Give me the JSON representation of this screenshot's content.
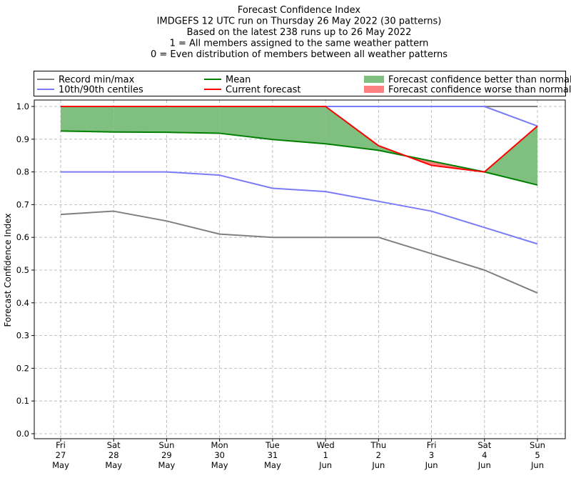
{
  "chart_data": {
    "type": "line",
    "title_lines": [
      "Forecast Confidence Index",
      "IMDGEFS 12 UTC run on Thursday 26 May 2022 (30 patterns)",
      "Based on the latest 238 runs up to 26 May 2022",
      "1 = All members assigned to the same weather pattern",
      "0 = Even distribution of members between all weather patterns"
    ],
    "ylabel": "Forecast Confidence Index",
    "ylim": [
      0,
      1
    ],
    "yticks": [
      "0.0",
      "0.1",
      "0.2",
      "0.3",
      "0.4",
      "0.5",
      "0.6",
      "0.7",
      "0.8",
      "0.9",
      "1.0"
    ],
    "grid": true,
    "categories": [
      [
        "Fri",
        "27",
        "May"
      ],
      [
        "Sat",
        "28",
        "May"
      ],
      [
        "Sun",
        "29",
        "May"
      ],
      [
        "Mon",
        "30",
        "May"
      ],
      [
        "Tue",
        "31",
        "May"
      ],
      [
        "Wed",
        "1",
        "Jun"
      ],
      [
        "Thu",
        "2",
        "Jun"
      ],
      [
        "Fri",
        "3",
        "Jun"
      ],
      [
        "Sat",
        "4",
        "Jun"
      ],
      [
        "Sun",
        "5",
        "Jun"
      ]
    ],
    "series": [
      {
        "key": "record_max",
        "name": "Record min/max",
        "color": "#808080",
        "values": [
          1.0,
          1.0,
          1.0,
          1.0,
          1.0,
          1.0,
          1.0,
          1.0,
          1.0,
          1.0
        ]
      },
      {
        "key": "record_min",
        "name": "Record min/max",
        "color": "#808080",
        "values": [
          0.67,
          0.68,
          0.65,
          0.61,
          0.6,
          0.6,
          0.6,
          0.55,
          0.5,
          0.43
        ]
      },
      {
        "key": "p90",
        "name": "10th/90th centiles",
        "color": "#7b7bf7",
        "values": [
          1.0,
          1.0,
          1.0,
          1.0,
          1.0,
          1.0,
          1.0,
          1.0,
          1.0,
          0.94
        ]
      },
      {
        "key": "p10",
        "name": "10th/90th centiles",
        "color": "#7b7bf7",
        "values": [
          0.8,
          0.8,
          0.8,
          0.79,
          0.75,
          0.74,
          0.71,
          0.68,
          0.63,
          0.58
        ]
      },
      {
        "key": "mean",
        "name": "Mean",
        "color": "#008000",
        "values": [
          0.925,
          0.922,
          0.921,
          0.918,
          0.899,
          0.886,
          0.866,
          0.833,
          0.8,
          0.76
        ]
      },
      {
        "key": "current",
        "name": "Current forecast",
        "color": "#ff0000",
        "values": [
          1.0,
          1.0,
          1.0,
          1.0,
          1.0,
          1.0,
          0.88,
          0.82,
          0.8,
          0.94
        ]
      }
    ],
    "legend": {
      "placement": "top",
      "items": [
        {
          "label": "Record min/max",
          "kind": "line",
          "color": "#808080"
        },
        {
          "label": "Mean",
          "kind": "line",
          "color": "#008000"
        },
        {
          "label": "Forecast confidence better than normal",
          "kind": "patch",
          "color": "#7fbf7f"
        },
        {
          "label": "10th/90th centiles",
          "kind": "line",
          "color": "#7b7bf7"
        },
        {
          "label": "Current forecast",
          "kind": "line",
          "color": "#ff0000"
        },
        {
          "label": "Forecast confidence worse than normal",
          "kind": "patch",
          "color": "#ff8080"
        }
      ]
    },
    "fill_colors": {
      "better": "#7fbf7f",
      "worse": "#ff8080"
    }
  }
}
